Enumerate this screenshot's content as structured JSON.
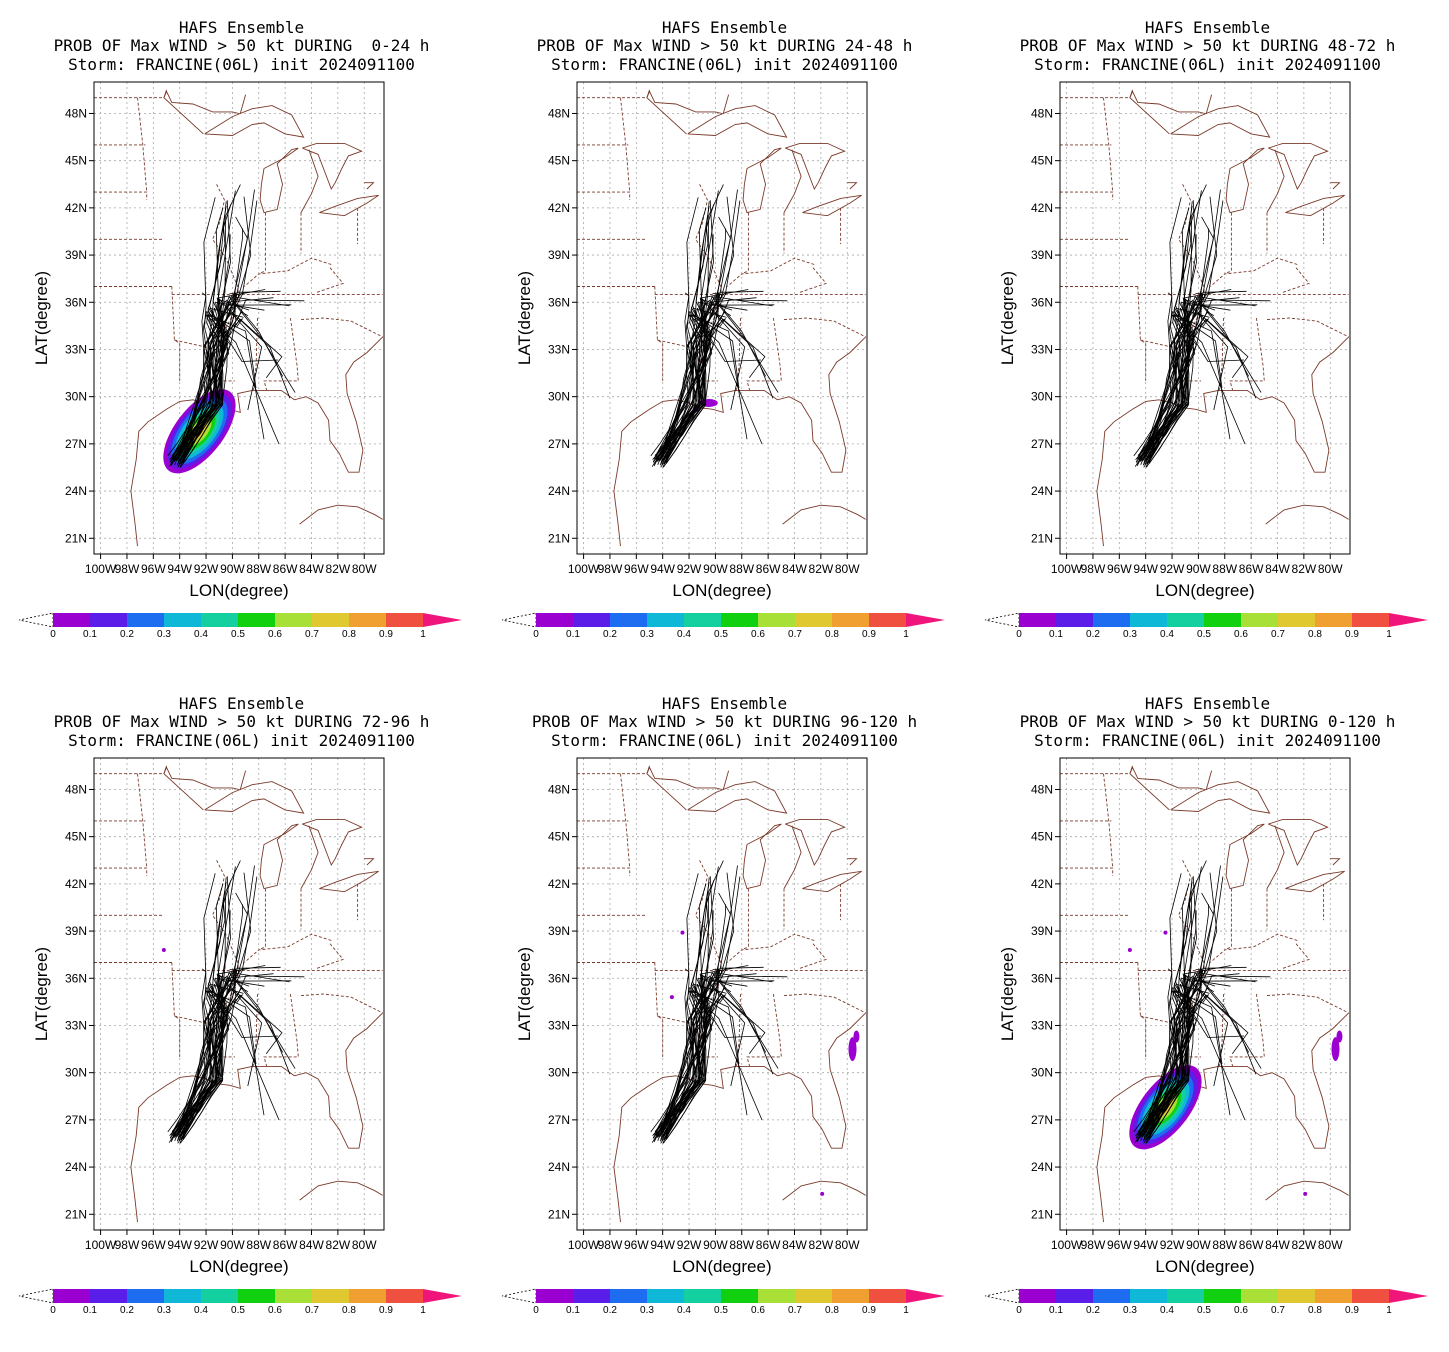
{
  "common": {
    "model": "HAFS Ensemble",
    "storm_line": "Storm: FRANCINE(06L) init 2024091100",
    "xlabel": "LON(degree)",
    "ylabel": "LAT(degree)",
    "lat_ticks": [
      "48N",
      "45N",
      "42N",
      "39N",
      "36N",
      "33N",
      "30N",
      "27N",
      "24N",
      "21N"
    ],
    "lon_ticks": [
      "100W",
      "98W",
      "96W",
      "94W",
      "92W",
      "90W",
      "88W",
      "86W",
      "84W",
      "82W",
      "80W"
    ],
    "colorbar_labels": [
      "0",
      "0.1",
      "0.2",
      "0.3",
      "0.4",
      "0.5",
      "0.6",
      "0.7",
      "0.8",
      "0.9",
      "1"
    ],
    "colorbar_colors": [
      "#9a00d0",
      "#5a1ee8",
      "#1e6cf0",
      "#10b8d8",
      "#14d0a0",
      "#10d010",
      "#a8e038",
      "#e0c830",
      "#f0a030",
      "#f05040"
    ],
    "colorbar_over_color": "#f0157a"
  },
  "panels": [
    {
      "prob_line": "PROB OF Max WIND > 50 kt DURING  0-24 h"
    },
    {
      "prob_line": "PROB OF Max WIND > 50 kt DURING 24-48 h"
    },
    {
      "prob_line": "PROB OF Max WIND > 50 kt DURING 48-72 h"
    },
    {
      "prob_line": "PROB OF Max WIND > 50 kt DURING 72-96 h"
    },
    {
      "prob_line": "PROB OF Max WIND > 50 kt DURING 96-120 h"
    },
    {
      "prob_line": "PROB OF Max WIND > 50 kt DURING 0-120 h"
    }
  ],
  "chart_data": [
    {
      "type": "heatmap",
      "title": "PROB OF Max WIND > 50 kt DURING  0-24 h",
      "xlabel": "LON(degree)",
      "ylabel": "LAT(degree)",
      "xlim": [
        -100.5,
        -78.5
      ],
      "ylim": [
        20,
        50
      ],
      "grid": true,
      "prob_areas": [
        {
          "center_lon": -92.5,
          "center_lat": 27.8,
          "max_prob": 0.9
        }
      ]
    },
    {
      "type": "heatmap",
      "title": "PROB OF Max WIND > 50 kt DURING 24-48 h",
      "xlabel": "LON(degree)",
      "ylabel": "LAT(degree)",
      "xlim": [
        -100.5,
        -78.5
      ],
      "ylim": [
        20,
        50
      ],
      "grid": true,
      "prob_areas": [
        {
          "center_lon": -90.5,
          "center_lat": 29.6,
          "max_prob": 0.1
        }
      ]
    },
    {
      "type": "heatmap",
      "title": "PROB OF Max WIND > 50 kt DURING 48-72 h",
      "xlabel": "LON(degree)",
      "ylabel": "LAT(degree)",
      "xlim": [
        -100.5,
        -78.5
      ],
      "ylim": [
        20,
        50
      ],
      "grid": true,
      "prob_areas": []
    },
    {
      "type": "heatmap",
      "title": "PROB OF Max WIND > 50 kt DURING 72-96 h",
      "xlabel": "LON(degree)",
      "ylabel": "LAT(degree)",
      "xlim": [
        -100.5,
        -78.5
      ],
      "ylim": [
        20,
        50
      ],
      "grid": true,
      "prob_areas": [
        {
          "center_lon": -95.2,
          "center_lat": 37.8,
          "max_prob": 0.05
        }
      ]
    },
    {
      "type": "heatmap",
      "title": "PROB OF Max WIND > 50 kt DURING 96-120 h",
      "xlabel": "LON(degree)",
      "ylabel": "LAT(degree)",
      "xlim": [
        -100.5,
        -78.5
      ],
      "ylim": [
        20,
        50
      ],
      "grid": true,
      "prob_areas": [
        {
          "center_lon": -92.5,
          "center_lat": 38.9,
          "max_prob": 0.05
        },
        {
          "center_lon": -93.3,
          "center_lat": 34.8,
          "max_prob": 0.05
        },
        {
          "center_lon": -79.6,
          "center_lat": 31.5,
          "max_prob": 0.1
        },
        {
          "center_lon": -81.9,
          "center_lat": 22.3,
          "max_prob": 0.05
        }
      ]
    },
    {
      "type": "heatmap",
      "title": "PROB OF Max WIND > 50 kt DURING 0-120 h",
      "xlabel": "LON(degree)",
      "ylabel": "LAT(degree)",
      "xlim": [
        -100.5,
        -78.5
      ],
      "ylim": [
        20,
        50
      ],
      "grid": true,
      "prob_areas": [
        {
          "center_lon": -92.5,
          "center_lat": 27.8,
          "max_prob": 0.9
        },
        {
          "center_lon": -95.2,
          "center_lat": 37.8,
          "max_prob": 0.05
        },
        {
          "center_lon": -92.5,
          "center_lat": 38.9,
          "max_prob": 0.05
        },
        {
          "center_lon": -79.6,
          "center_lat": 31.5,
          "max_prob": 0.1
        },
        {
          "center_lon": -81.9,
          "center_lat": 22.3,
          "max_prob": 0.05
        }
      ]
    }
  ]
}
